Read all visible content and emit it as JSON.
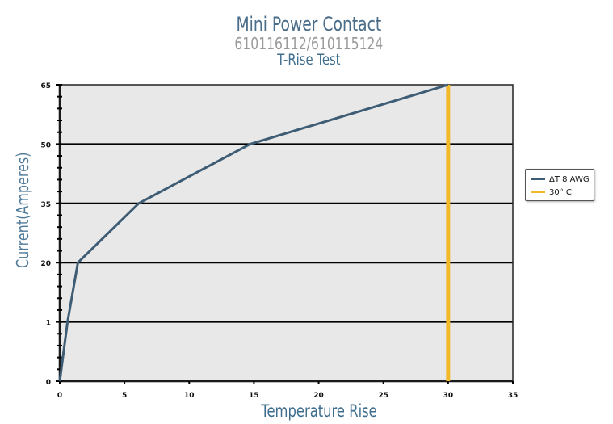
{
  "header": {
    "title": "Mini Power Contact",
    "subtitle": "610116112/610115124",
    "test_name": "T-Rise Test"
  },
  "axes": {
    "xlabel": "Temperature Rise",
    "ylabel": "Current(Amperes)",
    "x_ticks": [
      "0",
      "5",
      "10",
      "15",
      "20",
      "25",
      "30",
      "35"
    ],
    "y_ticks": [
      "0",
      "1",
      "20",
      "35",
      "50",
      "65"
    ]
  },
  "legend": {
    "items": [
      {
        "label": "ΔT  8 AWG",
        "color": "#3e5c74"
      },
      {
        "label": "30° C",
        "color": "#f2b92a"
      }
    ]
  },
  "colors": {
    "plot_bg": "#e8e8e8",
    "series": "#3e5c74",
    "threshold": "#f2b92a",
    "grid": "#000000"
  },
  "chart_data": {
    "type": "line",
    "title": "Mini Power Contact",
    "subtitle": "610116112/610115124 T-Rise Test",
    "xlabel": "Temperature Rise",
    "ylabel": "Current(Amperes)",
    "xlim": [
      0,
      35
    ],
    "y_categories": [
      "0",
      "1",
      "20",
      "35",
      "50",
      "65"
    ],
    "grid": true,
    "legend_position": "right",
    "series": [
      {
        "name": "ΔT 8 AWG",
        "x": [
          0,
          0.6,
          1.4,
          6.1,
          14.7,
          30
        ],
        "y": [
          0,
          1,
          20,
          35,
          50,
          65
        ]
      },
      {
        "name": "30° C",
        "type": "vertical_line",
        "x": [
          30,
          30
        ],
        "y": [
          0,
          65
        ]
      }
    ]
  }
}
